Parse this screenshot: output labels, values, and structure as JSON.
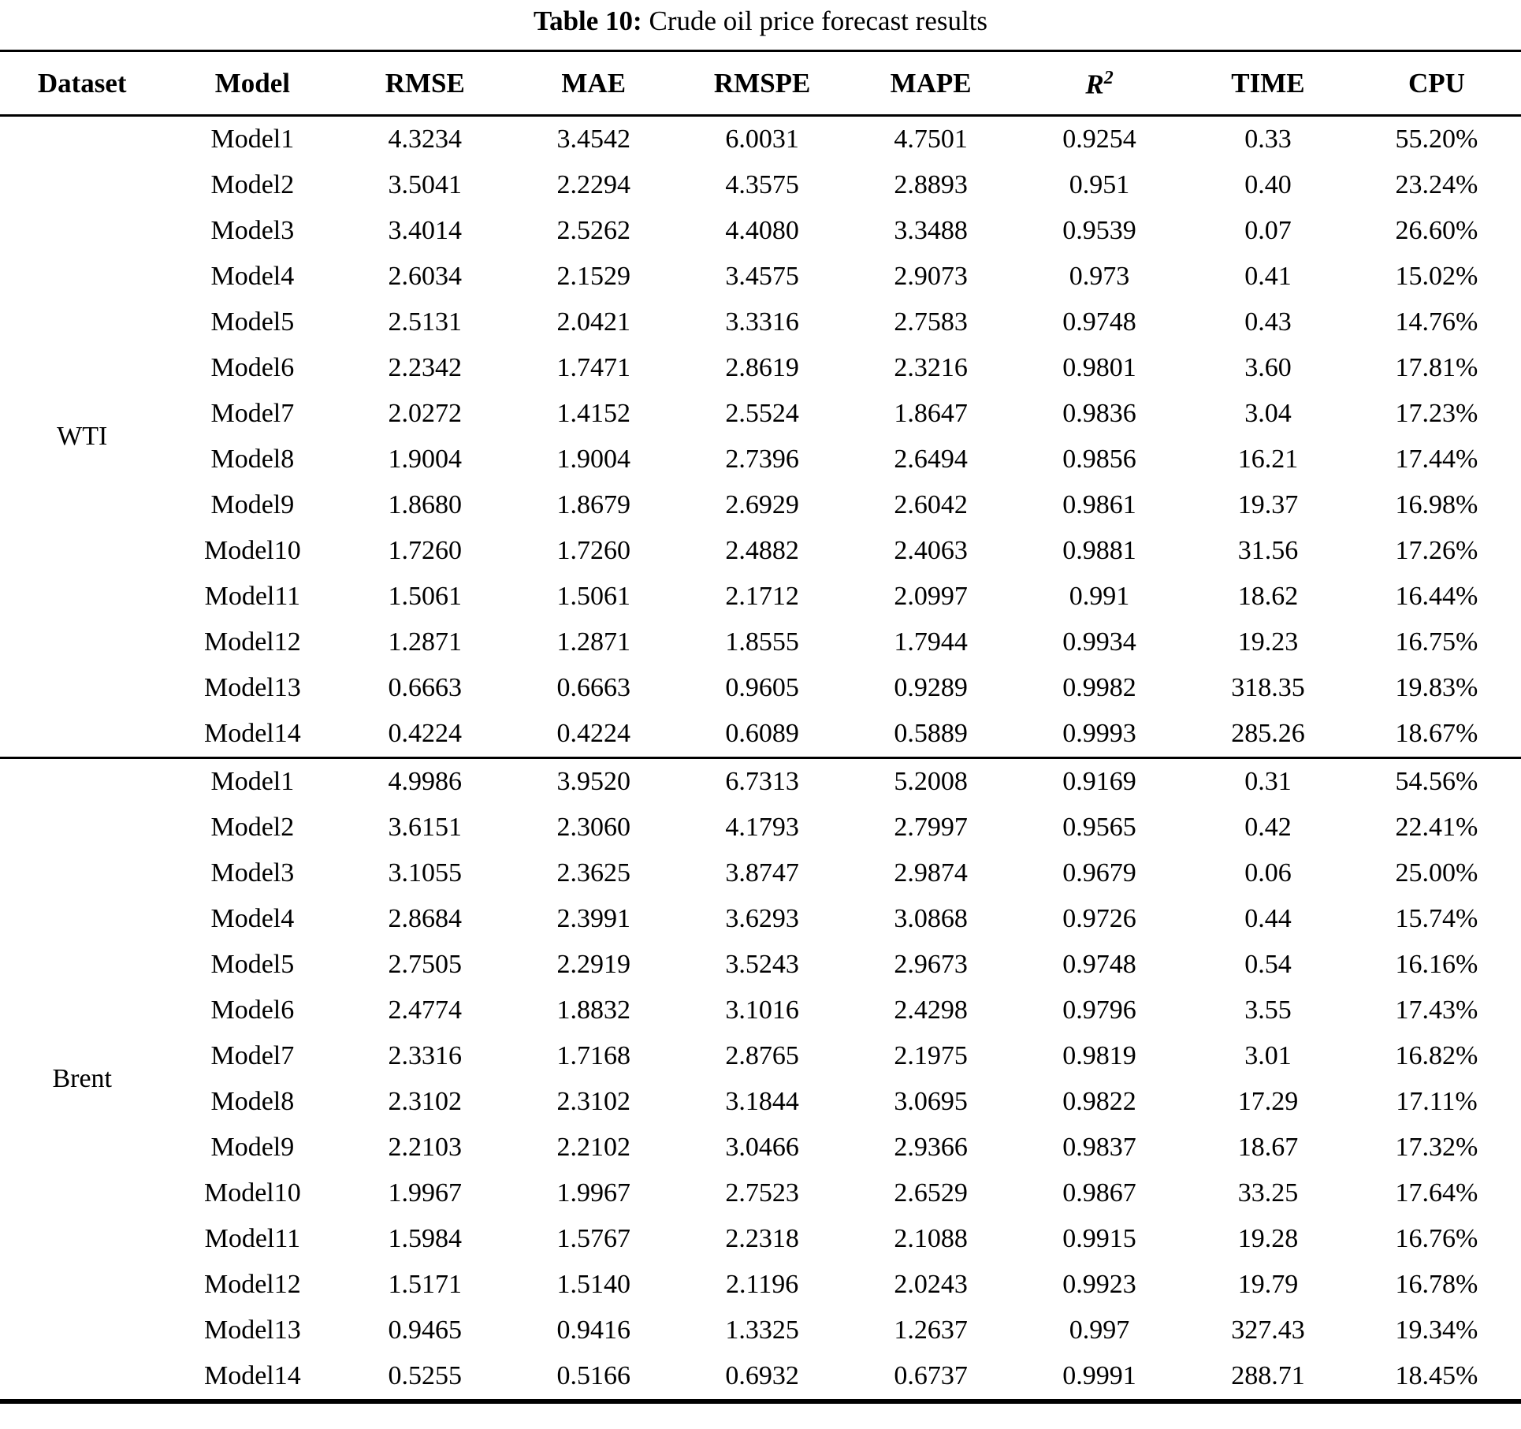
{
  "title": {
    "label": "Table 10:",
    "text": "Crude oil price forecast results"
  },
  "table": {
    "headers": {
      "dataset": "Dataset",
      "model": "Model",
      "rmse": "RMSE",
      "mae": "MAE",
      "rmspe": "RMSPE",
      "mape": "MAPE",
      "r2_base": "R",
      "r2_sup": "2",
      "time": "TIME",
      "cpu": "CPU"
    },
    "groups": [
      {
        "dataset": "WTI",
        "rows": [
          [
            "Model1",
            "4.3234",
            "3.4542",
            "6.0031",
            "4.7501",
            "0.9254",
            "0.33",
            "55.20%"
          ],
          [
            "Model2",
            "3.5041",
            "2.2294",
            "4.3575",
            "2.8893",
            "0.951",
            "0.40",
            "23.24%"
          ],
          [
            "Model3",
            "3.4014",
            "2.5262",
            "4.4080",
            "3.3488",
            "0.9539",
            "0.07",
            "26.60%"
          ],
          [
            "Model4",
            "2.6034",
            "2.1529",
            "3.4575",
            "2.9073",
            "0.973",
            "0.41",
            "15.02%"
          ],
          [
            "Model5",
            "2.5131",
            "2.0421",
            "3.3316",
            "2.7583",
            "0.9748",
            "0.43",
            "14.76%"
          ],
          [
            "Model6",
            "2.2342",
            "1.7471",
            "2.8619",
            "2.3216",
            "0.9801",
            "3.60",
            "17.81%"
          ],
          [
            "Model7",
            "2.0272",
            "1.4152",
            "2.5524",
            "1.8647",
            "0.9836",
            "3.04",
            "17.23%"
          ],
          [
            "Model8",
            "1.9004",
            "1.9004",
            "2.7396",
            "2.6494",
            "0.9856",
            "16.21",
            "17.44%"
          ],
          [
            "Model9",
            "1.8680",
            "1.8679",
            "2.6929",
            "2.6042",
            "0.9861",
            "19.37",
            "16.98%"
          ],
          [
            "Model10",
            "1.7260",
            "1.7260",
            "2.4882",
            "2.4063",
            "0.9881",
            "31.56",
            "17.26%"
          ],
          [
            "Model11",
            "1.5061",
            "1.5061",
            "2.1712",
            "2.0997",
            "0.991",
            "18.62",
            "16.44%"
          ],
          [
            "Model12",
            "1.2871",
            "1.2871",
            "1.8555",
            "1.7944",
            "0.9934",
            "19.23",
            "16.75%"
          ],
          [
            "Model13",
            "0.6663",
            "0.6663",
            "0.9605",
            "0.9289",
            "0.9982",
            "318.35",
            "19.83%"
          ],
          [
            "Model14",
            "0.4224",
            "0.4224",
            "0.6089",
            "0.5889",
            "0.9993",
            "285.26",
            "18.67%"
          ]
        ]
      },
      {
        "dataset": "Brent",
        "rows": [
          [
            "Model1",
            "4.9986",
            "3.9520",
            "6.7313",
            "5.2008",
            "0.9169",
            "0.31",
            "54.56%"
          ],
          [
            "Model2",
            "3.6151",
            "2.3060",
            "4.1793",
            "2.7997",
            "0.9565",
            "0.42",
            "22.41%"
          ],
          [
            "Model3",
            "3.1055",
            "2.3625",
            "3.8747",
            "2.9874",
            "0.9679",
            "0.06",
            "25.00%"
          ],
          [
            "Model4",
            "2.8684",
            "2.3991",
            "3.6293",
            "3.0868",
            "0.9726",
            "0.44",
            "15.74%"
          ],
          [
            "Model5",
            "2.7505",
            "2.2919",
            "3.5243",
            "2.9673",
            "0.9748",
            "0.54",
            "16.16%"
          ],
          [
            "Model6",
            "2.4774",
            "1.8832",
            "3.1016",
            "2.4298",
            "0.9796",
            "3.55",
            "17.43%"
          ],
          [
            "Model7",
            "2.3316",
            "1.7168",
            "2.8765",
            "2.1975",
            "0.9819",
            "3.01",
            "16.82%"
          ],
          [
            "Model8",
            "2.3102",
            "2.3102",
            "3.1844",
            "3.0695",
            "0.9822",
            "17.29",
            "17.11%"
          ],
          [
            "Model9",
            "2.2103",
            "2.2102",
            "3.0466",
            "2.9366",
            "0.9837",
            "18.67",
            "17.32%"
          ],
          [
            "Model10",
            "1.9967",
            "1.9967",
            "2.7523",
            "2.6529",
            "0.9867",
            "33.25",
            "17.64%"
          ],
          [
            "Model11",
            "1.5984",
            "1.5767",
            "2.2318",
            "2.1088",
            "0.9915",
            "19.28",
            "16.76%"
          ],
          [
            "Model12",
            "1.5171",
            "1.5140",
            "2.1196",
            "2.0243",
            "0.9923",
            "19.79",
            "16.78%"
          ],
          [
            "Model13",
            "0.9465",
            "0.9416",
            "1.3325",
            "1.2637",
            "0.997",
            "327.43",
            "19.34%"
          ],
          [
            "Model14",
            "0.5255",
            "0.5166",
            "0.6932",
            "0.6737",
            "0.9991",
            "288.71",
            "18.45%"
          ]
        ]
      }
    ]
  }
}
